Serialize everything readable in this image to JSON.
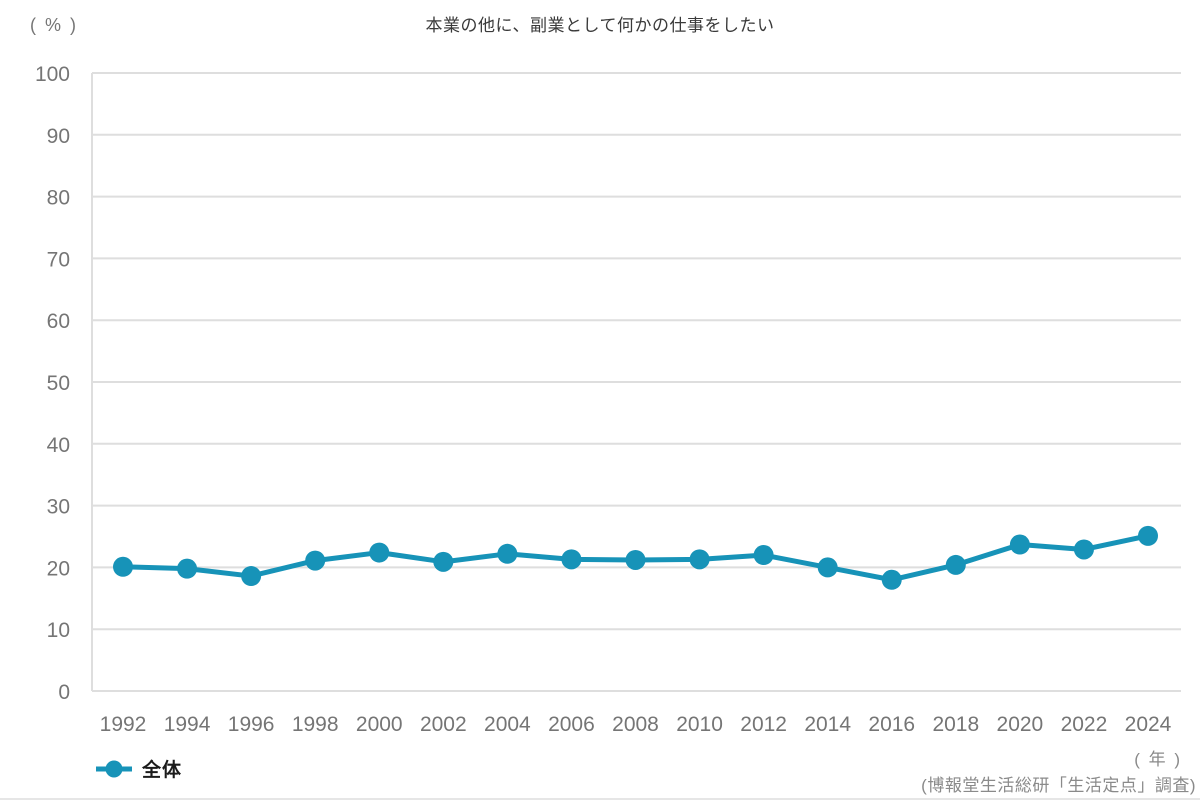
{
  "page": {
    "title": "本業の他に、副業として何かの仕事をしたい",
    "y_axis_unit_label": "( % )",
    "x_axis_unit_label": "( 年 )",
    "source_note": "(博報堂生活総研「生活定点」調査)"
  },
  "legend": {
    "series_label": "全体"
  },
  "colors": {
    "line": "#1793b8",
    "grid": "#dedede",
    "tick_text": "#757575",
    "title_text": "#3a3a3a",
    "legend_text": "#1b1b1b",
    "note_text": "#8a8a8a"
  },
  "chart_data": {
    "type": "line",
    "title": "本業の他に、副業として何かの仕事をしたい",
    "xlabel": "年",
    "ylabel": "%",
    "ylim": [
      0,
      100
    ],
    "ytick_step": 10,
    "grid": true,
    "legend_position": "bottom-left",
    "line_color": "#1793b8",
    "categories": [
      "1992",
      "1994",
      "1996",
      "1998",
      "2000",
      "2002",
      "2004",
      "2006",
      "2008",
      "2010",
      "2012",
      "2014",
      "2016",
      "2018",
      "2020",
      "2022",
      "2024"
    ],
    "series": [
      {
        "name": "全体",
        "values": [
          20.1,
          19.8,
          18.6,
          21.1,
          22.4,
          20.9,
          22.2,
          21.3,
          21.2,
          21.3,
          22.0,
          20.0,
          18.0,
          20.4,
          23.7,
          22.9,
          25.1
        ]
      }
    ]
  }
}
